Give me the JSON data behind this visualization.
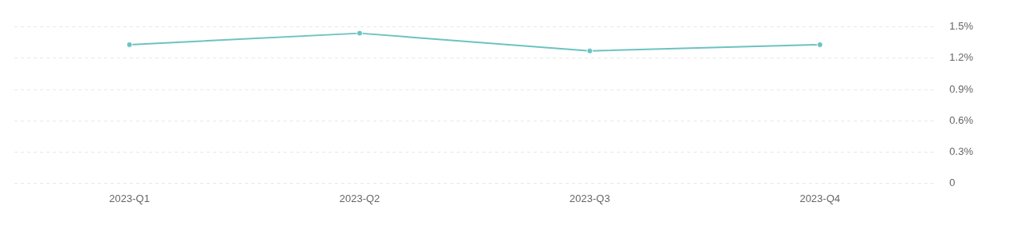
{
  "chart_data": {
    "type": "line",
    "categories": [
      "2023-Q1",
      "2023-Q2",
      "2023-Q3",
      "2023-Q4"
    ],
    "series": [
      {
        "color": "#6cc3c1",
        "values": [
          1.33,
          1.44,
          1.27,
          1.33
        ]
      }
    ],
    "ylim": [
      0,
      1.5
    ],
    "yticks": [
      0,
      {
        "value": 0.3,
        "label": "0.3%"
      },
      {
        "value": 0.6,
        "label": "0.6%"
      },
      {
        "value": 0.9,
        "label": "0.9%"
      },
      {
        "value": 1.2,
        "label": "1.2%"
      },
      {
        "value": 1.5,
        "label": "1.5%"
      }
    ],
    "grid": "y",
    "marker": "circle",
    "line_style": "solid",
    "legend": false
  }
}
